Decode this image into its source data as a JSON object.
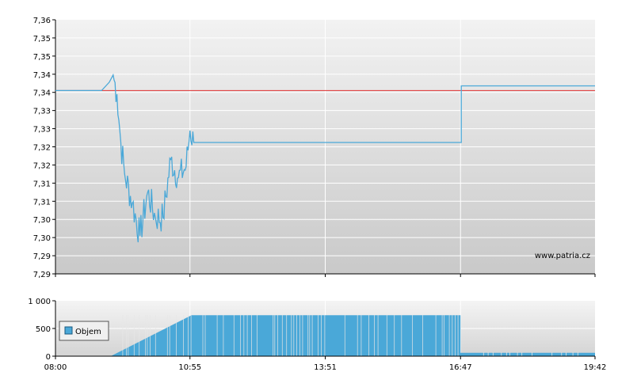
{
  "chart_data": [
    {
      "type": "line",
      "yticks": [
        "7,36",
        "7,35",
        "7,35",
        "7,34",
        "7,34",
        "7,33",
        "7,33",
        "7,32",
        "7,32",
        "7,31",
        "7,31",
        "7,30",
        "7,30",
        "7,29",
        "7,29"
      ],
      "ylim": [
        7.29,
        7.36
      ],
      "xlim_minutes": [
        480,
        1182
      ],
      "grid": true,
      "reference_line": {
        "value": 7.3405,
        "color": "#e03030"
      },
      "series": [
        {
          "color": "#4aa8d8",
          "x": [
            "08:00",
            "09:00",
            "09:10",
            "09:15",
            "09:20",
            "09:25",
            "09:30",
            "09:40",
            "09:50",
            "10:00",
            "10:10",
            "10:20",
            "10:30",
            "10:40",
            "10:50",
            "10:55",
            "11:00",
            "11:10",
            "11:20",
            "12:00",
            "14:00",
            "16:00",
            "16:47",
            "16:48",
            "19:42"
          ],
          "values": [
            7.3405,
            7.3405,
            7.3428,
            7.3448,
            7.3395,
            7.3262,
            7.3175,
            7.3095,
            7.3005,
            7.3125,
            7.3055,
            7.3055,
            7.3215,
            7.3165,
            7.3195,
            7.3295,
            7.3262,
            7.3262,
            7.3262,
            7.3262,
            7.3262,
            7.3262,
            7.3262,
            7.3418,
            7.3418
          ]
        }
      ],
      "watermark": "www.patria.cz"
    },
    {
      "type": "bar",
      "yticks": [
        "1 000",
        "500",
        "0"
      ],
      "ylim": [
        0,
        1000
      ],
      "xticks": [
        "08:00",
        "10:55",
        "13:51",
        "16:47",
        "19:42"
      ],
      "legend": {
        "label": "Objem",
        "placement": "left"
      },
      "color": "#4aa8d8",
      "volume_profile": [
        {
          "from": "08:00",
          "to": "09:12",
          "value": 0
        },
        {
          "from": "09:12",
          "to": "10:57",
          "value_start": 0,
          "value_end": 740
        },
        {
          "from": "10:57",
          "to": "16:47",
          "value": 740
        },
        {
          "from": "16:47",
          "to": "19:42",
          "value": 60
        }
      ]
    }
  ]
}
